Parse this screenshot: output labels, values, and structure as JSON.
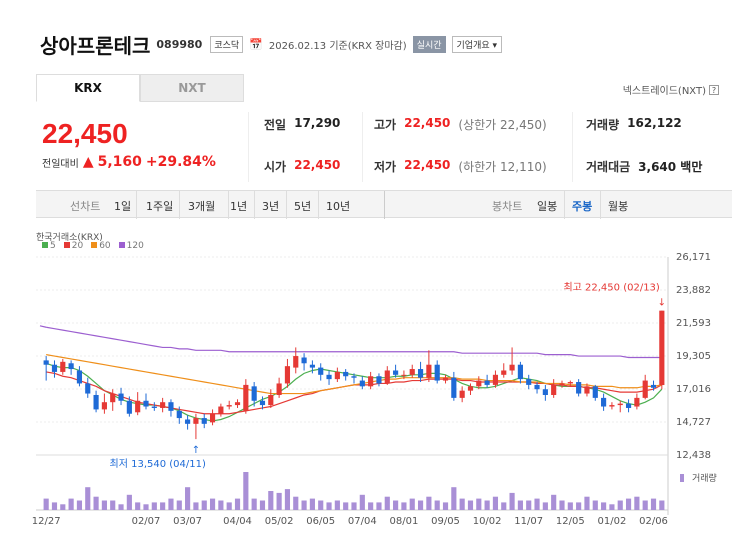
{
  "header": {
    "name": "상아프론테크",
    "code": "089980",
    "market": "코스닥",
    "date": "2026.02.13 기준(KRX 장마감)",
    "realtime": "실시간",
    "overview": "기업개요"
  },
  "tabs": [
    "KRX",
    "NXT"
  ],
  "nxt_label": "넥스트레이드(NXT)",
  "quote": {
    "price": "22,450",
    "change_label": "전일대비",
    "change": "5,160",
    "change_pct": "+29.84%"
  },
  "stats": {
    "prev_label": "전일",
    "prev": "17,290",
    "high_label": "고가",
    "high": "22,450",
    "high_note": "(상한가 22,450)",
    "volume_label": "거래량",
    "volume": "162,122",
    "open_label": "시가",
    "open": "22,450",
    "low_label": "저가",
    "low": "22,450",
    "low_note": "(하한가 12,110)",
    "amount_label": "거래대금",
    "amount": "3,640 백만"
  },
  "periods": {
    "line_label": "선차트",
    "line_items": [
      "1일",
      "1주일",
      "3개월",
      "1년",
      "3년",
      "5년",
      "10년"
    ],
    "candle_label": "봉차트",
    "candle_items": [
      "일봉",
      "주봉",
      "월봉"
    ],
    "active_candle": "주봉"
  },
  "legend": {
    "source": "한국거래소(KRX)",
    "items": [
      {
        "label": "5",
        "color": "#4caf50"
      },
      {
        "label": "20",
        "color": "#e53935"
      },
      {
        "label": "60",
        "color": "#ef8f1a"
      },
      {
        "label": "120",
        "color": "#9c5fd0"
      }
    ]
  },
  "chart_data": {
    "type": "candlestick",
    "y_ticks": [
      "26,171",
      "23,882",
      "21,593",
      "19,305",
      "17,016",
      "14,727",
      "12,438"
    ],
    "ylim": [
      12438,
      26171
    ],
    "x_ticks": [
      "12/27",
      "02/07",
      "03/07",
      "04/04",
      "05/02",
      "06/05",
      "07/04",
      "08/01",
      "09/05",
      "10/02",
      "11/07",
      "12/05",
      "01/02",
      "02/06"
    ],
    "high_annotation": "최고 22,450 (02/13)",
    "low_annotation": "최저 13,540 (04/11)",
    "volume_label": "거래량",
    "candles": [
      {
        "o": 19000,
        "c": 18700,
        "h": 19300,
        "l": 17600
      },
      {
        "o": 18700,
        "c": 18200,
        "h": 19000,
        "l": 17800
      },
      {
        "o": 18200,
        "c": 18900,
        "h": 19100,
        "l": 18000
      },
      {
        "o": 18800,
        "c": 18400,
        "h": 19000,
        "l": 18000
      },
      {
        "o": 18300,
        "c": 17400,
        "h": 18600,
        "l": 17200
      },
      {
        "o": 17400,
        "c": 16700,
        "h": 17800,
        "l": 16400
      },
      {
        "o": 16600,
        "c": 15600,
        "h": 16900,
        "l": 15400
      },
      {
        "o": 15600,
        "c": 16100,
        "h": 16700,
        "l": 15300
      },
      {
        "o": 16100,
        "c": 16700,
        "h": 17000,
        "l": 15500
      },
      {
        "o": 16700,
        "c": 16200,
        "h": 17100,
        "l": 15900
      },
      {
        "o": 16200,
        "c": 15300,
        "h": 16500,
        "l": 15100
      },
      {
        "o": 15400,
        "c": 16200,
        "h": 16800,
        "l": 15200
      },
      {
        "o": 16200,
        "c": 15800,
        "h": 16700,
        "l": 15600
      },
      {
        "o": 15800,
        "c": 15700,
        "h": 16100,
        "l": 15500
      },
      {
        "o": 15700,
        "c": 16100,
        "h": 16400,
        "l": 15400
      },
      {
        "o": 16100,
        "c": 15500,
        "h": 16300,
        "l": 15100
      },
      {
        "o": 15500,
        "c": 15000,
        "h": 15800,
        "l": 14600
      },
      {
        "o": 14900,
        "c": 14600,
        "h": 15200,
        "l": 14200
      },
      {
        "o": 14600,
        "c": 15000,
        "h": 15300,
        "l": 13540
      },
      {
        "o": 15000,
        "c": 14600,
        "h": 15300,
        "l": 14300
      },
      {
        "o": 14700,
        "c": 15300,
        "h": 15600,
        "l": 14500
      },
      {
        "o": 15300,
        "c": 15800,
        "h": 16000,
        "l": 15100
      },
      {
        "o": 15800,
        "c": 15900,
        "h": 16200,
        "l": 15600
      },
      {
        "o": 15900,
        "c": 16100,
        "h": 16300,
        "l": 15700
      },
      {
        "o": 15500,
        "c": 17300,
        "h": 17700,
        "l": 15300
      },
      {
        "o": 17200,
        "c": 16200,
        "h": 17500,
        "l": 15800
      },
      {
        "o": 16200,
        "c": 15900,
        "h": 16500,
        "l": 15600
      },
      {
        "o": 15900,
        "c": 16600,
        "h": 17000,
        "l": 15700
      },
      {
        "o": 16600,
        "c": 17400,
        "h": 17800,
        "l": 16400
      },
      {
        "o": 17400,
        "c": 18600,
        "h": 19100,
        "l": 17100
      },
      {
        "o": 18500,
        "c": 19300,
        "h": 19900,
        "l": 18100
      },
      {
        "o": 19200,
        "c": 18800,
        "h": 19500,
        "l": 18300
      },
      {
        "o": 18700,
        "c": 18500,
        "h": 19000,
        "l": 18100
      },
      {
        "o": 18500,
        "c": 18000,
        "h": 18800,
        "l": 17600
      },
      {
        "o": 18000,
        "c": 17700,
        "h": 18300,
        "l": 17300
      },
      {
        "o": 17700,
        "c": 18200,
        "h": 18500,
        "l": 17500
      },
      {
        "o": 18200,
        "c": 17900,
        "h": 18400,
        "l": 17600
      },
      {
        "o": 17900,
        "c": 17800,
        "h": 18100,
        "l": 17400
      },
      {
        "o": 17600,
        "c": 17200,
        "h": 17900,
        "l": 17000
      },
      {
        "o": 17200,
        "c": 17900,
        "h": 18200,
        "l": 17000
      },
      {
        "o": 17900,
        "c": 17400,
        "h": 18100,
        "l": 17200
      },
      {
        "o": 17400,
        "c": 18300,
        "h": 18600,
        "l": 17300
      },
      {
        "o": 18300,
        "c": 18000,
        "h": 18700,
        "l": 17800
      },
      {
        "o": 18000,
        "c": 18000,
        "h": 18300,
        "l": 17700
      },
      {
        "o": 18000,
        "c": 18400,
        "h": 18700,
        "l": 17800
      },
      {
        "o": 18400,
        "c": 17800,
        "h": 18900,
        "l": 17500
      },
      {
        "o": 17800,
        "c": 18700,
        "h": 19700,
        "l": 17500
      },
      {
        "o": 18700,
        "c": 17600,
        "h": 19000,
        "l": 17400
      },
      {
        "o": 17600,
        "c": 17800,
        "h": 18000,
        "l": 17400
      },
      {
        "o": 17800,
        "c": 16400,
        "h": 18200,
        "l": 16200
      },
      {
        "o": 16400,
        "c": 16900,
        "h": 17200,
        "l": 16100
      },
      {
        "o": 16900,
        "c": 17200,
        "h": 17400,
        "l": 16600
      },
      {
        "o": 17200,
        "c": 17600,
        "h": 17900,
        "l": 17000
      },
      {
        "o": 17600,
        "c": 17300,
        "h": 18000,
        "l": 17100
      },
      {
        "o": 17300,
        "c": 18000,
        "h": 18300,
        "l": 17100
      },
      {
        "o": 18000,
        "c": 18300,
        "h": 18800,
        "l": 17800
      },
      {
        "o": 18300,
        "c": 18700,
        "h": 19900,
        "l": 18000
      },
      {
        "o": 18700,
        "c": 17700,
        "h": 18900,
        "l": 17400
      },
      {
        "o": 17700,
        "c": 17300,
        "h": 18000,
        "l": 17000
      },
      {
        "o": 17300,
        "c": 17000,
        "h": 17500,
        "l": 16700
      },
      {
        "o": 17000,
        "c": 16600,
        "h": 17300,
        "l": 16200
      },
      {
        "o": 16600,
        "c": 17300,
        "h": 17700,
        "l": 16400
      },
      {
        "o": 17300,
        "c": 17400,
        "h": 17600,
        "l": 17100
      },
      {
        "o": 17400,
        "c": 17500,
        "h": 17600,
        "l": 17200
      },
      {
        "o": 17500,
        "c": 16700,
        "h": 17700,
        "l": 16500
      },
      {
        "o": 16700,
        "c": 17200,
        "h": 17400,
        "l": 16500
      },
      {
        "o": 17200,
        "c": 16400,
        "h": 17300,
        "l": 16200
      },
      {
        "o": 16400,
        "c": 15800,
        "h": 16700,
        "l": 15500
      },
      {
        "o": 15800,
        "c": 15900,
        "h": 16100,
        "l": 15600
      },
      {
        "o": 15900,
        "c": 16000,
        "h": 16200,
        "l": 15400
      },
      {
        "o": 16000,
        "c": 15700,
        "h": 16300,
        "l": 15400
      },
      {
        "o": 15800,
        "c": 16400,
        "h": 16700,
        "l": 15600
      },
      {
        "o": 16400,
        "c": 17600,
        "h": 18000,
        "l": 16300
      },
      {
        "o": 17300,
        "c": 17100,
        "h": 17600,
        "l": 16900
      },
      {
        "o": 17290,
        "c": 22450,
        "h": 22450,
        "l": 17000
      }
    ],
    "ma": {
      "5": [
        18800,
        18600,
        18500,
        18500,
        18300,
        17900,
        17400,
        16900,
        16600,
        16300,
        16100,
        16000,
        15900,
        15900,
        15800,
        15700,
        15500,
        15200,
        15000,
        14900,
        14800,
        14900,
        15100,
        15400,
        15700,
        16000,
        16300,
        16500,
        16800,
        17200,
        17700,
        18100,
        18300,
        18400,
        18300,
        18200,
        18100,
        18000,
        17900,
        17800,
        17800,
        17800,
        17900,
        17900,
        18000,
        18000,
        18100,
        18100,
        18000,
        17700,
        17400,
        17200,
        17100,
        17100,
        17200,
        17400,
        17600,
        17800,
        17700,
        17600,
        17400,
        17300,
        17200,
        17200,
        17200,
        17100,
        17000,
        16800,
        16500,
        16200,
        16000,
        15900,
        16100,
        16400,
        17000
      ],
      "20": [
        18200,
        18100,
        17900,
        17800,
        17600,
        17400,
        17200,
        16900,
        16700,
        16500,
        16300,
        16100,
        16000,
        15900,
        15800,
        15700,
        15600,
        15500,
        15400,
        15300,
        15300,
        15300,
        15300,
        15400,
        15500,
        15600,
        15700,
        15800,
        16000,
        16200,
        16400,
        16600,
        16700,
        16900,
        17000,
        17100,
        17200,
        17300,
        17300,
        17300,
        17400,
        17400,
        17500,
        17500,
        17600,
        17600,
        17700,
        17700,
        17700,
        17700,
        17600,
        17600,
        17500,
        17500,
        17500,
        17500,
        17500,
        17500,
        17500,
        17400,
        17400,
        17300,
        17300,
        17200,
        17200,
        17100,
        17100,
        17000,
        16900,
        16800,
        16800,
        16800,
        16900,
        17000,
        17300
      ],
      "60": [
        19400,
        19300,
        19200,
        19100,
        19000,
        18900,
        18800,
        18700,
        18600,
        18500,
        18400,
        18300,
        18200,
        18100,
        18000,
        17900,
        17800,
        17700,
        17600,
        17500,
        17400,
        17300,
        17200,
        17100,
        17000,
        16900,
        16800,
        16700,
        16700,
        16700,
        16700,
        16700,
        16800,
        16900,
        17000,
        17100,
        17200,
        17300,
        17400,
        17500,
        17600,
        17700,
        17700,
        17800,
        17800,
        17800,
        17800,
        17800,
        17800,
        17800,
        17700,
        17700,
        17700,
        17600,
        17600,
        17600,
        17600,
        17500,
        17500,
        17500,
        17400,
        17400,
        17400,
        17300,
        17300,
        17300,
        17200,
        17200,
        17200,
        17100,
        17100,
        17100,
        17200,
        17200,
        17300
      ],
      "120": [
        21300,
        21200,
        21100,
        21000,
        20900,
        20800,
        20700,
        20600,
        20500,
        20400,
        20300,
        20200,
        20100,
        20000,
        19900,
        19900,
        19800,
        19800,
        19700,
        19700,
        19700,
        19700,
        19600,
        19600,
        19600,
        19600,
        19600,
        19600,
        19600,
        19600,
        19600,
        19600,
        19600,
        19600,
        19600,
        19600,
        19600,
        19600,
        19600,
        19600,
        19600,
        19600,
        19600,
        19600,
        19600,
        19600,
        19600,
        19600,
        19600,
        19600,
        19500,
        19500,
        19500,
        19500,
        19500,
        19500,
        19500,
        19500,
        19500,
        19500,
        19400,
        19400,
        19400,
        19400,
        19300,
        19300,
        19300,
        19300,
        19300,
        19300,
        19200,
        19200,
        19200,
        19200,
        19200
      ]
    },
    "volume": [
      30,
      20,
      15,
      30,
      25,
      60,
      35,
      25,
      25,
      15,
      40,
      20,
      15,
      20,
      20,
      30,
      25,
      60,
      20,
      25,
      30,
      25,
      20,
      30,
      100,
      30,
      25,
      50,
      45,
      55,
      35,
      25,
      30,
      25,
      20,
      25,
      20,
      20,
      40,
      20,
      20,
      35,
      25,
      20,
      30,
      25,
      35,
      25,
      20,
      60,
      30,
      25,
      30,
      25,
      35,
      20,
      45,
      25,
      25,
      30,
      20,
      40,
      25,
      20,
      20,
      35,
      25,
      20,
      15,
      25,
      30,
      35,
      25,
      30,
      25
    ]
  }
}
